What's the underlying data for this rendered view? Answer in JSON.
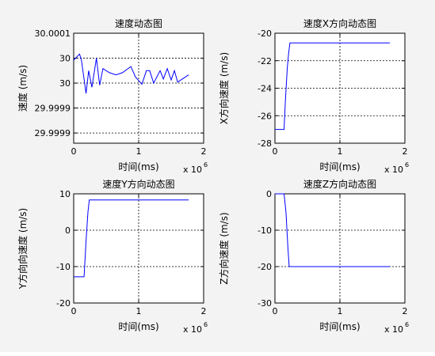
{
  "colors": {
    "line": "#0000ff",
    "axes": "#000000",
    "figure_bg": "#f3f3f3"
  },
  "chart_data": [
    {
      "type": "line",
      "title": "速度动态图",
      "xlabel": "时间(ms)",
      "ylabel": "速度 (m/s)",
      "x_multiplier": {
        "base": "x 10",
        "exp": "6"
      },
      "xlim": [
        0,
        2
      ],
      "ylim": [
        29.99987,
        30.0001
      ],
      "x_ticks": [
        0,
        1,
        2
      ],
      "x_tick_labels": [
        "0",
        "1",
        "2"
      ],
      "y_ticks": [
        30.0001,
        30.0000478,
        29.9999957,
        29.9999435,
        29.9998913
      ],
      "y_tick_labels": [
        "30.0001",
        "30",
        "30",
        "29.9999",
        "29.9999"
      ],
      "grid": true,
      "series": [
        {
          "x": [
            0,
            0.09,
            0.12,
            0.19,
            0.23,
            0.28,
            0.35,
            0.4,
            0.45,
            0.55,
            0.65,
            0.75,
            0.88,
            0.95,
            1.05,
            1.12,
            1.17,
            1.23,
            1.33,
            1.38,
            1.44,
            1.5,
            1.55,
            1.6,
            1.77
          ],
          "y": [
            30.0000435,
            30.0000565,
            30.0000435,
            29.9999739,
            30.0000217,
            29.999987,
            30.0000478,
            29.9999913,
            30.0000261,
            30.0000174,
            30.000013,
            30.0000174,
            30.0000304,
            30.0000087,
            29.9999935,
            30.0000217,
            30.0000217,
            29.9999957,
            30.0000217,
            30.0000043,
            30.0000261,
            30.0000022,
            30.0000217,
            29.9999978,
            30.000013
          ]
        }
      ]
    },
    {
      "type": "line",
      "title": "速度X方向动态图",
      "xlabel": "时间(ms)",
      "ylabel": "X方向速度 (m/s)",
      "x_multiplier": {
        "base": "x 10",
        "exp": "6"
      },
      "xlim": [
        0,
        2
      ],
      "ylim": [
        -28,
        -20
      ],
      "x_ticks": [
        0,
        1,
        2
      ],
      "x_tick_labels": [
        "0",
        "1",
        "2"
      ],
      "y_ticks": [
        -20,
        -22,
        -24,
        -26,
        -28
      ],
      "y_tick_labels": [
        "-20",
        "-22",
        "-24",
        "-26",
        "-28"
      ],
      "grid": true,
      "series": [
        {
          "x": [
            0,
            0.14,
            0.16,
            0.19,
            0.21,
            0.23,
            1.5,
            1.77
          ],
          "y": [
            -27.0,
            -27.0,
            -25.0,
            -22.5,
            -21.5,
            -20.7,
            -20.7,
            -20.7
          ]
        }
      ]
    },
    {
      "type": "line",
      "title": "速度Y方向动态图",
      "xlabel": "时间(ms)",
      "ylabel": "Y方向向速度 (m/s)",
      "x_multiplier": {
        "base": "x 10",
        "exp": "6"
      },
      "xlim": [
        0,
        2
      ],
      "ylim": [
        -20,
        10
      ],
      "x_ticks": [
        0,
        1,
        2
      ],
      "x_tick_labels": [
        "0",
        "1",
        "2"
      ],
      "y_ticks": [
        10,
        0,
        -10,
        -20
      ],
      "y_tick_labels": [
        "10",
        "0",
        "-10",
        "-20"
      ],
      "grid": true,
      "series": [
        {
          "x": [
            0,
            0.16,
            0.19,
            0.22,
            0.24,
            1.0,
            1.77
          ],
          "y": [
            -12.8,
            -12.8,
            -3.0,
            5.0,
            8.3,
            8.3,
            8.3
          ]
        }
      ]
    },
    {
      "type": "line",
      "title": "速度Z方向动态图",
      "xlabel": "时间(ms)",
      "ylabel": "Z方向速度 (m/s)",
      "x_multiplier": {
        "base": "x 10",
        "exp": "6"
      },
      "xlim": [
        0,
        2
      ],
      "ylim": [
        -30,
        0
      ],
      "x_ticks": [
        0,
        1,
        2
      ],
      "x_tick_labels": [
        "0",
        "1",
        "2"
      ],
      "y_ticks": [
        0,
        -10,
        -20,
        -30
      ],
      "y_tick_labels": [
        "0",
        "-10",
        "-20",
        "-30"
      ],
      "grid": true,
      "series": [
        {
          "x": [
            0,
            0.14,
            0.17,
            0.2,
            0.22,
            1.0,
            1.77
          ],
          "y": [
            0,
            0,
            -5.0,
            -15.0,
            -20.0,
            -20.0,
            -20.0
          ]
        }
      ]
    }
  ]
}
